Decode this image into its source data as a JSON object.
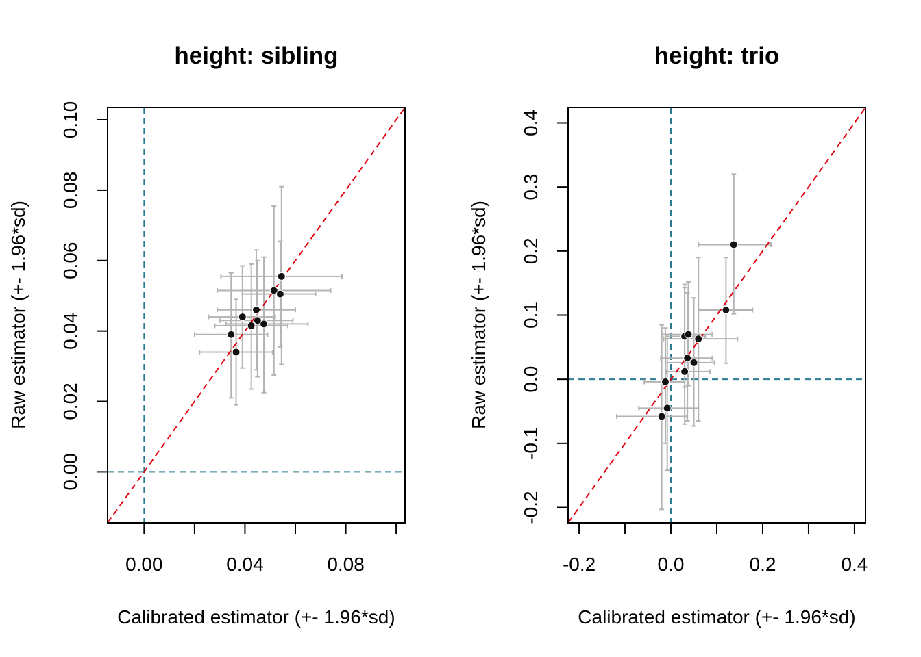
{
  "colors": {
    "ref_line": "#e3000f",
    "zero_line": "#2c7a91",
    "error_bar": "#b3b3b3",
    "point": "#111111",
    "axis": "#000000"
  },
  "chart_data": [
    {
      "type": "scatter",
      "title": "height: sibling",
      "xlabel": "Calibrated estimator (+- 1.96*sd)",
      "ylabel": "Raw estimator (+- 1.96*sd)",
      "xlim": [
        -0.0145,
        0.1035
      ],
      "ylim": [
        -0.0145,
        0.1035
      ],
      "x_ticks": [
        0.0,
        0.02,
        0.04,
        0.06,
        0.08,
        0.1
      ],
      "x_tick_labels": [
        "0.00",
        "",
        "0.04",
        "",
        "0.08",
        ""
      ],
      "y_ticks": [
        0.0,
        0.02,
        0.04,
        0.06,
        0.08,
        0.1
      ],
      "y_tick_labels": [
        "0.00",
        "0.02",
        "0.04",
        "0.06",
        "0.08",
        "0.10"
      ],
      "reference_line": "y = x",
      "zero_lines": true,
      "points": [
        {
          "x": 0.0345,
          "y": 0.039,
          "x_lo": 0.02,
          "x_hi": 0.049,
          "y_lo": 0.021,
          "y_hi": 0.0565
        },
        {
          "x": 0.0365,
          "y": 0.034,
          "x_lo": 0.022,
          "x_hi": 0.051,
          "y_lo": 0.019,
          "y_hi": 0.049
        },
        {
          "x": 0.039,
          "y": 0.044,
          "x_lo": 0.0255,
          "x_hi": 0.052,
          "y_lo": 0.0295,
          "y_hi": 0.0585
        },
        {
          "x": 0.0425,
          "y": 0.0415,
          "x_lo": 0.028,
          "x_hi": 0.057,
          "y_lo": 0.0235,
          "y_hi": 0.059
        },
        {
          "x": 0.0445,
          "y": 0.046,
          "x_lo": 0.029,
          "x_hi": 0.06,
          "y_lo": 0.029,
          "y_hi": 0.063
        },
        {
          "x": 0.045,
          "y": 0.043,
          "x_lo": 0.03,
          "x_hi": 0.059,
          "y_lo": 0.027,
          "y_hi": 0.06
        },
        {
          "x": 0.0475,
          "y": 0.042,
          "x_lo": 0.0325,
          "x_hi": 0.065,
          "y_lo": 0.0225,
          "y_hi": 0.061
        },
        {
          "x": 0.0515,
          "y": 0.0515,
          "x_lo": 0.029,
          "x_hi": 0.074,
          "y_lo": 0.0275,
          "y_hi": 0.0755
        },
        {
          "x": 0.054,
          "y": 0.0505,
          "x_lo": 0.039,
          "x_hi": 0.068,
          "y_lo": 0.0355,
          "y_hi": 0.0655
        },
        {
          "x": 0.0545,
          "y": 0.0555,
          "x_lo": 0.0305,
          "x_hi": 0.0785,
          "y_lo": 0.0305,
          "y_hi": 0.081
        }
      ]
    },
    {
      "type": "scatter",
      "title": "height: trio",
      "xlabel": "Calibrated estimator (+- 1.96*sd)",
      "ylabel": "Raw estimator (+- 1.96*sd)",
      "xlim": [
        -0.224,
        0.424
      ],
      "ylim": [
        -0.224,
        0.424
      ],
      "x_ticks": [
        -0.2,
        -0.1,
        0.0,
        0.1,
        0.2,
        0.3,
        0.4
      ],
      "x_tick_labels": [
        "-0.2",
        "",
        "0.0",
        "",
        "0.2",
        "",
        "0.4"
      ],
      "y_ticks": [
        -0.2,
        -0.1,
        0.0,
        0.1,
        0.2,
        0.3,
        0.4
      ],
      "y_tick_labels": [
        "-0.2",
        "-0.1",
        "0.0",
        "0.1",
        "0.2",
        "0.3",
        "0.4"
      ],
      "reference_line": "y = x",
      "zero_lines": true,
      "points": [
        {
          "x": -0.02,
          "y": -0.058,
          "x_lo": -0.118,
          "x_hi": 0.035,
          "y_lo": -0.203,
          "y_hi": 0.085
        },
        {
          "x": -0.012,
          "y": -0.004,
          "x_lo": -0.058,
          "x_hi": 0.03,
          "y_lo": -0.1,
          "y_hi": 0.08
        },
        {
          "x": -0.008,
          "y": -0.045,
          "x_lo": -0.07,
          "x_hi": 0.06,
          "y_lo": -0.142,
          "y_hi": 0.07
        },
        {
          "x": 0.03,
          "y": 0.012,
          "x_lo": -0.01,
          "x_hi": 0.085,
          "y_lo": -0.07,
          "y_hi": 0.143
        },
        {
          "x": 0.03,
          "y": 0.067,
          "x_lo": -0.012,
          "x_hi": 0.075,
          "y_lo": -0.012,
          "y_hi": 0.148
        },
        {
          "x": 0.036,
          "y": 0.033,
          "x_lo": -0.022,
          "x_hi": 0.09,
          "y_lo": -0.065,
          "y_hi": 0.135
        },
        {
          "x": 0.038,
          "y": 0.07,
          "x_lo": -0.018,
          "x_hi": 0.09,
          "y_lo": -0.01,
          "y_hi": 0.152
        },
        {
          "x": 0.05,
          "y": 0.026,
          "x_lo": -0.008,
          "x_hi": 0.095,
          "y_lo": -0.073,
          "y_hi": 0.127
        },
        {
          "x": 0.06,
          "y": 0.063,
          "x_lo": -0.016,
          "x_hi": 0.145,
          "y_lo": -0.065,
          "y_hi": 0.19
        },
        {
          "x": 0.12,
          "y": 0.108,
          "x_lo": 0.06,
          "x_hi": 0.178,
          "y_lo": 0.025,
          "y_hi": 0.19
        },
        {
          "x": 0.137,
          "y": 0.21,
          "x_lo": 0.06,
          "x_hi": 0.218,
          "y_lo": 0.102,
          "y_hi": 0.32
        }
      ]
    }
  ]
}
